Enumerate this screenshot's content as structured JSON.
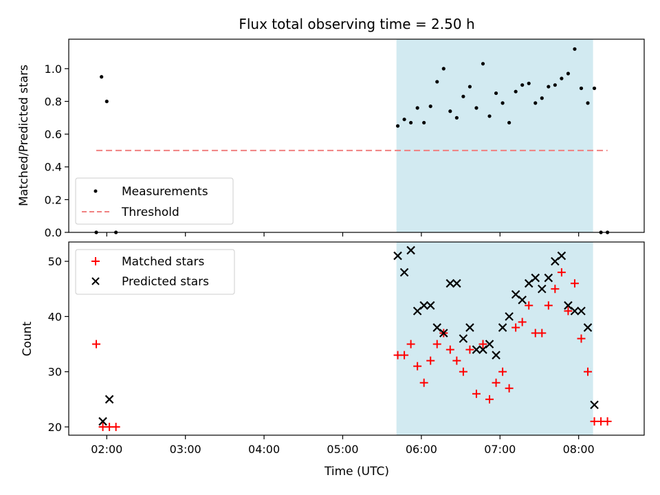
{
  "chart_data": [
    {
      "type": "scatter",
      "title": "Flux total observing time = 2.50 h",
      "xlabel": "",
      "ylabel": "Matched/Predicted stars",
      "ylim": [
        0,
        1.18
      ],
      "xlim": [
        "01:31",
        "08:50"
      ],
      "yticks": [
        "0.0",
        "0.2",
        "0.4",
        "0.6",
        "0.8",
        "1.0"
      ],
      "highlight_span": {
        "start": "05:41",
        "end": "08:11",
        "color": "#add8e6"
      },
      "legend_position": "lower-left",
      "series": [
        {
          "name": "Measurements",
          "color": "#000000",
          "marker": "dot",
          "points": [
            [
              "01:52",
              0.0
            ],
            [
              "01:56",
              0.95
            ],
            [
              "02:00",
              0.8
            ],
            [
              "02:07",
              0.0
            ],
            [
              "05:42",
              0.65
            ],
            [
              "05:47",
              0.69
            ],
            [
              "05:52",
              0.67
            ],
            [
              "05:57",
              0.76
            ],
            [
              "06:02",
              0.67
            ],
            [
              "06:07",
              0.77
            ],
            [
              "06:12",
              0.92
            ],
            [
              "06:17",
              1.0
            ],
            [
              "06:22",
              0.74
            ],
            [
              "06:27",
              0.7
            ],
            [
              "06:32",
              0.83
            ],
            [
              "06:37",
              0.89
            ],
            [
              "06:42",
              0.76
            ],
            [
              "06:47",
              1.03
            ],
            [
              "06:52",
              0.71
            ],
            [
              "06:57",
              0.85
            ],
            [
              "07:02",
              0.79
            ],
            [
              "07:07",
              0.67
            ],
            [
              "07:12",
              0.86
            ],
            [
              "07:17",
              0.9
            ],
            [
              "07:22",
              0.91
            ],
            [
              "07:27",
              0.79
            ],
            [
              "07:32",
              0.82
            ],
            [
              "07:37",
              0.89
            ],
            [
              "07:42",
              0.9
            ],
            [
              "07:47",
              0.94
            ],
            [
              "07:52",
              0.97
            ],
            [
              "07:57",
              1.12
            ],
            [
              "08:02",
              0.88
            ],
            [
              "08:07",
              0.79
            ],
            [
              "08:12",
              0.88
            ],
            [
              "08:17",
              0.0
            ],
            [
              "08:22",
              0.0
            ]
          ]
        },
        {
          "name": "Threshold",
          "color": "#f08080",
          "style": "dashed",
          "points": [
            [
              "01:52",
              0.5
            ],
            [
              "08:22",
              0.5
            ]
          ]
        }
      ]
    },
    {
      "type": "scatter",
      "title": "",
      "xlabel": "Time (UTC)",
      "ylabel": "Count",
      "ylim": [
        18.5,
        53.5
      ],
      "xlim": [
        "01:31",
        "08:50"
      ],
      "xticks": [
        "02:00",
        "03:00",
        "04:00",
        "05:00",
        "06:00",
        "07:00",
        "08:00"
      ],
      "yticks": [
        "20",
        "30",
        "40",
        "50"
      ],
      "highlight_span": {
        "start": "05:41",
        "end": "08:11",
        "color": "#add8e6"
      },
      "legend_position": "top-left",
      "series": [
        {
          "name": "Matched stars",
          "color": "#ff0000",
          "marker": "plus",
          "points": [
            [
              "01:52",
              35
            ],
            [
              "01:57",
              20
            ],
            [
              "02:02",
              20
            ],
            [
              "02:07",
              20
            ],
            [
              "05:42",
              33
            ],
            [
              "05:47",
              33
            ],
            [
              "05:52",
              35
            ],
            [
              "05:57",
              31
            ],
            [
              "06:02",
              28
            ],
            [
              "06:07",
              32
            ],
            [
              "06:12",
              35
            ],
            [
              "06:17",
              37
            ],
            [
              "06:22",
              34
            ],
            [
              "06:27",
              32
            ],
            [
              "06:32",
              30
            ],
            [
              "06:37",
              34
            ],
            [
              "06:42",
              26
            ],
            [
              "06:47",
              35
            ],
            [
              "06:52",
              25
            ],
            [
              "06:57",
              28
            ],
            [
              "07:02",
              30
            ],
            [
              "07:07",
              27
            ],
            [
              "07:12",
              38
            ],
            [
              "07:17",
              39
            ],
            [
              "07:22",
              42
            ],
            [
              "07:27",
              37
            ],
            [
              "07:32",
              37
            ],
            [
              "07:37",
              42
            ],
            [
              "07:42",
              45
            ],
            [
              "07:47",
              48
            ],
            [
              "07:52",
              41
            ],
            [
              "07:57",
              46
            ],
            [
              "08:02",
              36
            ],
            [
              "08:07",
              30
            ],
            [
              "08:12",
              21
            ],
            [
              "08:17",
              21
            ],
            [
              "08:22",
              21
            ]
          ]
        },
        {
          "name": "Predicted stars",
          "color": "#000000",
          "marker": "x",
          "points": [
            [
              "01:57",
              21
            ],
            [
              "02:02",
              25
            ],
            [
              "05:42",
              51
            ],
            [
              "05:47",
              48
            ],
            [
              "05:52",
              52
            ],
            [
              "05:57",
              41
            ],
            [
              "06:02",
              42
            ],
            [
              "06:07",
              42
            ],
            [
              "06:12",
              38
            ],
            [
              "06:17",
              37
            ],
            [
              "06:22",
              46
            ],
            [
              "06:27",
              46
            ],
            [
              "06:32",
              36
            ],
            [
              "06:37",
              38
            ],
            [
              "06:42",
              34
            ],
            [
              "06:47",
              34
            ],
            [
              "06:52",
              35
            ],
            [
              "06:57",
              33
            ],
            [
              "07:02",
              38
            ],
            [
              "07:07",
              40
            ],
            [
              "07:12",
              44
            ],
            [
              "07:17",
              43
            ],
            [
              "07:22",
              46
            ],
            [
              "07:27",
              47
            ],
            [
              "07:32",
              45
            ],
            [
              "07:37",
              47
            ],
            [
              "07:42",
              50
            ],
            [
              "07:47",
              51
            ],
            [
              "07:52",
              42
            ],
            [
              "07:57",
              41
            ],
            [
              "08:02",
              41
            ],
            [
              "08:07",
              38
            ],
            [
              "08:12",
              24
            ]
          ]
        }
      ]
    }
  ]
}
